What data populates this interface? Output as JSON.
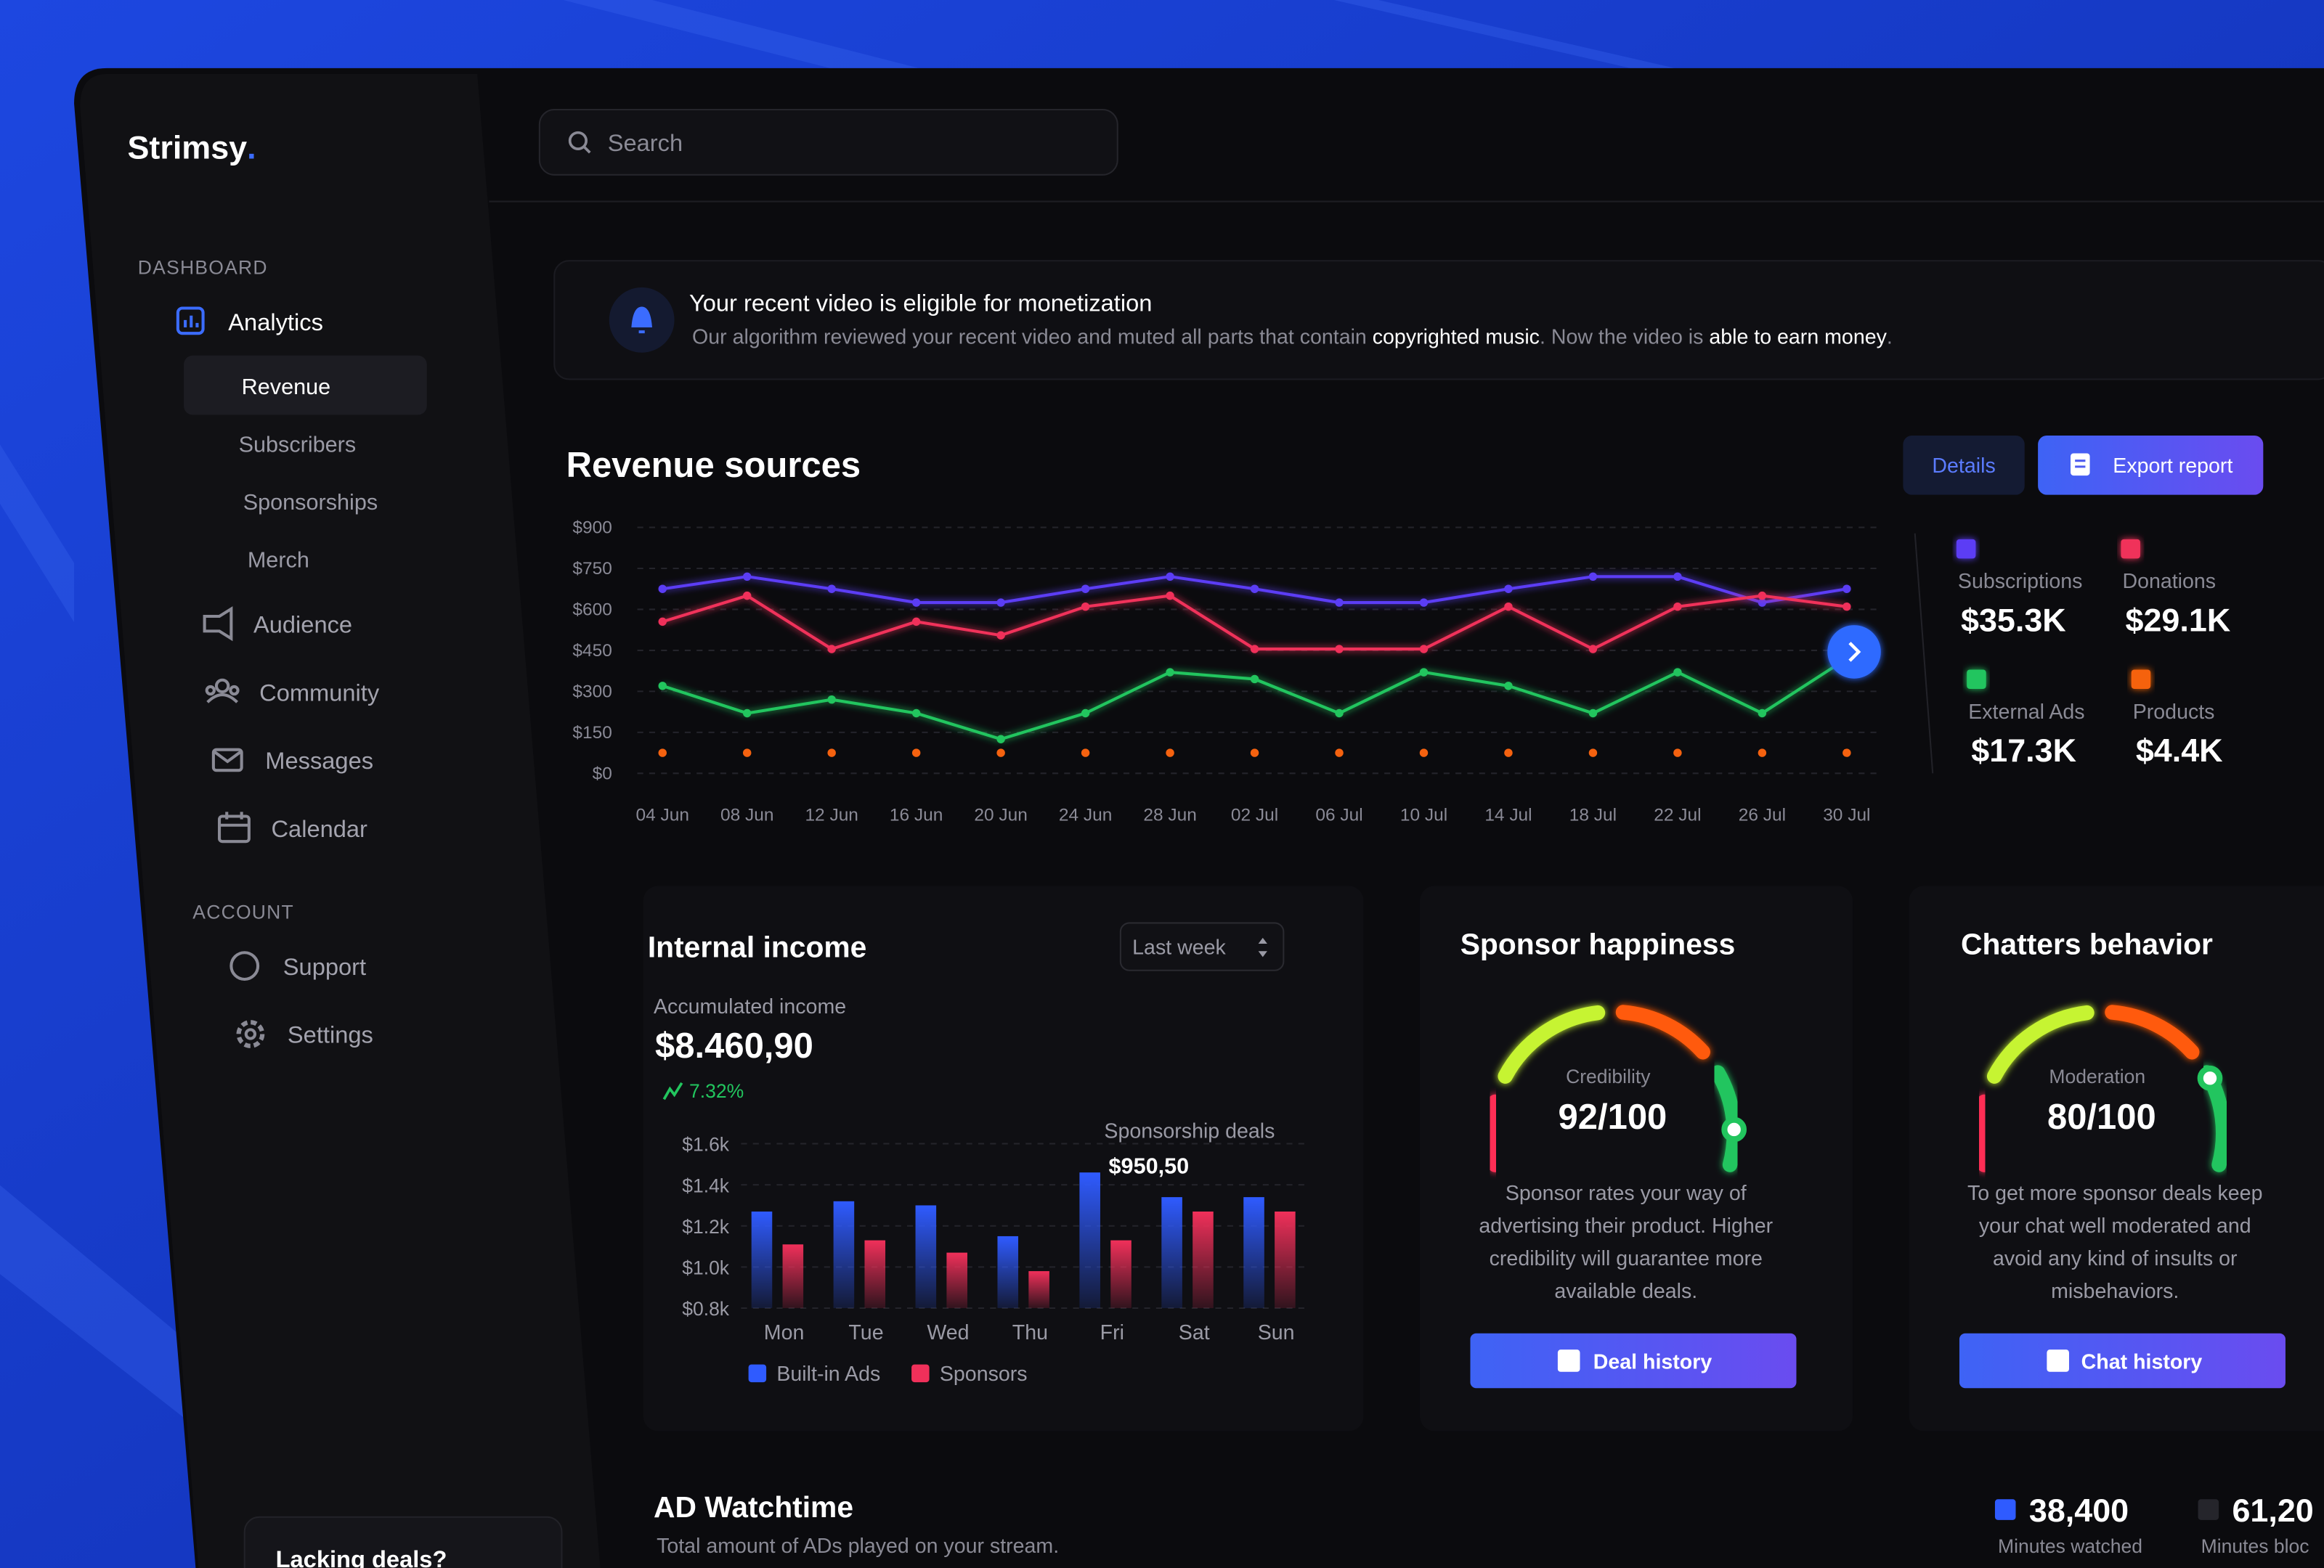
{
  "brand": "Strimsy",
  "brand_dot": ".",
  "search": "Search",
  "sidebar": {
    "sections": [
      {
        "title": "DASHBOARD",
        "items": [
          "Analytics",
          "Revenue",
          "Subscribers",
          "Sponsorships",
          "Merch",
          "Audience",
          "Community",
          "Messages",
          "Calendar"
        ]
      },
      {
        "title": "ACCOUNT",
        "items": [
          "Support",
          "Settings"
        ]
      }
    ],
    "promo": "Lacking deals?"
  },
  "notification": {
    "title": "Your recent video is eligible for monetization",
    "body": [
      "Our algorithm reviewed your recent video and muted all parts that contain ",
      "copyrighted music",
      ". Now the video is ",
      "able to earn money",
      "."
    ]
  },
  "revenue": {
    "title": "Revenue sources",
    "buttons": [
      "Details",
      "Export report"
    ]
  },
  "chart_data": [
    {
      "type": "line",
      "categories": [
        "04 Jun",
        "08 Jun",
        "12 Jun",
        "16 Jun",
        "20 Jun",
        "24 Jun",
        "28 Jun",
        "02 Jul",
        "06 Jul",
        "10 Jul",
        "14 Jul",
        "18 Jul",
        "22 Jul",
        "26 Jul",
        "30 Jul"
      ],
      "series": [
        {
          "name": "Subscriptions",
          "color": "#5b3df5",
          "total": "$35.3K",
          "values": [
            675,
            720,
            675,
            625,
            625,
            675,
            720,
            675,
            625,
            625,
            675,
            720,
            720,
            625,
            675
          ]
        },
        {
          "name": "Donations",
          "color": "#f0305a",
          "total": "$29.1K",
          "values": [
            555,
            650,
            455,
            555,
            505,
            610,
            650,
            455,
            455,
            455,
            610,
            455,
            610,
            650,
            610
          ]
        },
        {
          "name": "External Ads",
          "color": "#22c55e",
          "total": "$17.3K",
          "values": [
            320,
            220,
            270,
            220,
            125,
            220,
            370,
            345,
            220,
            370,
            320,
            220,
            370,
            220,
            420
          ]
        },
        {
          "name": "Products",
          "color": "#f5620f",
          "total": "$4.4K",
          "values": [
            75,
            75,
            75,
            75,
            75,
            75,
            75,
            75,
            75,
            75,
            75,
            75,
            75,
            75,
            75
          ]
        }
      ],
      "ylim": [
        0,
        900
      ],
      "yticks": [
        {
          "value": 0,
          "label": "$0"
        },
        {
          "value": 150,
          "label": "$150"
        },
        {
          "value": 300,
          "label": "$300"
        },
        {
          "value": 450,
          "label": "$450"
        },
        {
          "value": 600,
          "label": "$600"
        },
        {
          "value": 750,
          "label": "$750"
        },
        {
          "value": 900,
          "label": "$900"
        }
      ],
      "grid": true
    },
    {
      "type": "bar",
      "title": "Internal income",
      "dropdown": "Last week",
      "kpi_label": "Accumulated income",
      "kpi_value": "$8.460,90",
      "kpi_change": "7.32%",
      "categories": [
        "Mon",
        "Tue",
        "Wed",
        "Thu",
        "Fri",
        "Sat",
        "Sun"
      ],
      "series": [
        {
          "name": "Built-in Ads",
          "color": "#2f5bff",
          "values": [
            1270,
            1320,
            1300,
            1150,
            1460,
            1340,
            1340
          ]
        },
        {
          "name": "Sponsors",
          "color": "#f0305a",
          "values": [
            1110,
            1130,
            1070,
            980,
            1130,
            1270,
            1270
          ]
        }
      ],
      "ylim": [
        800,
        1600
      ],
      "yticks": [
        {
          "value": 800,
          "label": "$0.8k"
        },
        {
          "value": 1000,
          "label": "$1.0k"
        },
        {
          "value": 1200,
          "label": "$1.2k"
        },
        {
          "value": 1400,
          "label": "$1.4k"
        },
        {
          "value": 1600,
          "label": "$1.6k"
        }
      ],
      "grid": true,
      "annotation": {
        "label": "Sponsorship deals",
        "value": "$950,50"
      }
    },
    {
      "type": "gauge",
      "title": "Sponsor happiness",
      "label": "Credibility",
      "values": [
        92
      ],
      "value_labels": [
        "92/100"
      ],
      "ylim": [
        0,
        100
      ],
      "description": [
        "Sponsor rates your way of",
        "advertising their product. Higher",
        "credibility will guarantee more",
        "available deals."
      ],
      "button": "Deal history"
    },
    {
      "type": "gauge",
      "title": "Chatters behavior",
      "label": "Moderation",
      "values": [
        80
      ],
      "value_labels": [
        "80/100"
      ],
      "ylim": [
        0,
        100
      ],
      "description": [
        "To get more sponsor deals keep",
        "your chat well moderated and",
        "avoid any kind of insults or",
        "misbehaviors."
      ],
      "button": "Chat history"
    }
  ],
  "ad_watchtime": {
    "title": "AD Watchtime",
    "subtitle": "Total amount of ADs played on your stream.",
    "stats": [
      {
        "value": "38,400",
        "label": "Minutes watched"
      },
      {
        "value": "61,20",
        "label": "Minutes bloc"
      }
    ]
  }
}
